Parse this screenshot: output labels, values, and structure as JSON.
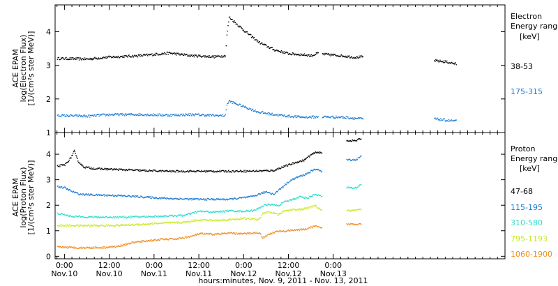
{
  "chart_data": [
    {
      "type": "scatter",
      "panel": "electron",
      "ylabel_lines": [
        "ACE EPAM",
        "log(Electron Flux)",
        "[1/(cm²s ster MeV)]"
      ],
      "legend_title_lines": [
        "Electron",
        "Energy ranges",
        "[keV]"
      ],
      "ylim": [
        1,
        4.8
      ],
      "yticks": [
        1,
        2,
        3,
        4
      ],
      "series": [
        {
          "name": "38-53",
          "color": "#000000",
          "segments": [
            [
              [
                -2,
                3.22
              ],
              [
                6,
                3.2
              ],
              [
                12,
                3.26
              ],
              [
                20,
                3.3
              ],
              [
                28,
                3.38
              ],
              [
                34,
                3.3
              ],
              [
                40,
                3.27
              ],
              [
                43,
                3.3
              ],
              [
                43.4,
                3.9
              ],
              [
                44,
                4.45
              ],
              [
                48,
                4.05
              ],
              [
                52,
                3.7
              ],
              [
                56,
                3.48
              ],
              [
                60,
                3.36
              ],
              [
                64,
                3.33
              ],
              [
                66,
                3.3
              ],
              [
                68,
                3.38
              ]
            ],
            [
              [
                69,
                3.35
              ],
              [
                74,
                3.3
              ],
              [
                78,
                3.25
              ],
              [
                80,
                3.27
              ]
            ],
            [
              [
                99,
                3.15
              ],
              [
                102,
                3.12
              ],
              [
                105,
                3.05
              ]
            ]
          ]
        },
        {
          "name": "175-315",
          "color": "#1a7ad4",
          "segments": [
            [
              [
                -2,
                1.52
              ],
              [
                6,
                1.5
              ],
              [
                12,
                1.55
              ],
              [
                20,
                1.55
              ],
              [
                28,
                1.53
              ],
              [
                34,
                1.55
              ],
              [
                40,
                1.52
              ],
              [
                43,
                1.52
              ],
              [
                43.4,
                1.85
              ],
              [
                44,
                1.95
              ],
              [
                48,
                1.78
              ],
              [
                52,
                1.62
              ],
              [
                56,
                1.55
              ],
              [
                60,
                1.5
              ],
              [
                64,
                1.47
              ],
              [
                68,
                1.48
              ]
            ],
            [
              [
                69,
                1.48
              ],
              [
                74,
                1.47
              ],
              [
                80,
                1.42
              ]
            ],
            [
              [
                99,
                1.42
              ],
              [
                102,
                1.38
              ],
              [
                105,
                1.35
              ]
            ]
          ]
        }
      ]
    },
    {
      "type": "scatter",
      "panel": "proton",
      "ylabel_lines": [
        "ACE EPAM",
        "log(Proton Flux)",
        "[1/(cm²s ster MeV)]"
      ],
      "legend_title_lines": [
        "Proton",
        "Energy ranges",
        "[keV]"
      ],
      "xlabel": "hours:minutes, Nov. 9, 2011 - Nov. 13, 2011",
      "ylim": [
        -0.1,
        4.85
      ],
      "yticks": [
        0,
        1,
        2,
        3,
        4
      ],
      "xlim": [
        -2.5,
        118
      ],
      "xticks": [
        {
          "x": 0,
          "top": "0:00",
          "bottom": "Nov.10"
        },
        {
          "x": 12,
          "top": "12:00",
          "bottom": "Nov.10"
        },
        {
          "x": 24,
          "top": "0:00",
          "bottom": "Nov.11"
        },
        {
          "x": 36,
          "top": "12:00",
          "bottom": "Nov.11"
        },
        {
          "x": 48,
          "top": "0:00",
          "bottom": "Nov.12"
        },
        {
          "x": 60,
          "top": "12:00",
          "bottom": "Nov.12"
        },
        {
          "x": 72,
          "top": "0:00",
          "bottom": "Nov.13"
        }
      ],
      "series": [
        {
          "name": "47-68",
          "color": "#000000",
          "segments": [
            [
              [
                -2,
                3.55
              ],
              [
                0,
                3.6
              ],
              [
                1.5,
                3.85
              ],
              [
                2.5,
                4.15
              ],
              [
                3.5,
                3.75
              ],
              [
                5,
                3.52
              ],
              [
                8,
                3.45
              ],
              [
                14,
                3.42
              ],
              [
                20,
                3.38
              ],
              [
                28,
                3.35
              ],
              [
                36,
                3.35
              ],
              [
                44,
                3.35
              ],
              [
                52,
                3.36
              ],
              [
                56,
                3.38
              ],
              [
                58,
                3.5
              ],
              [
                60,
                3.6
              ],
              [
                62,
                3.7
              ],
              [
                64,
                3.78
              ],
              [
                66,
                4.0
              ],
              [
                67.5,
                4.1
              ],
              [
                69,
                4.05
              ]
            ],
            [
              [
                75.5,
                4.55
              ],
              [
                78,
                4.55
              ],
              [
                79.5,
                4.65
              ]
            ]
          ]
        },
        {
          "name": "115-195",
          "color": "#1a7ad4",
          "segments": [
            [
              [
                -2,
                2.75
              ],
              [
                0,
                2.7
              ],
              [
                2,
                2.55
              ],
              [
                4,
                2.45
              ],
              [
                8,
                2.42
              ],
              [
                14,
                2.4
              ],
              [
                20,
                2.35
              ],
              [
                28,
                2.28
              ],
              [
                36,
                2.25
              ],
              [
                44,
                2.25
              ],
              [
                50,
                2.35
              ],
              [
                54,
                2.55
              ],
              [
                56,
                2.45
              ],
              [
                58,
                2.7
              ],
              [
                60,
                2.95
              ],
              [
                62,
                3.1
              ],
              [
                64,
                3.2
              ],
              [
                66,
                3.35
              ],
              [
                67.5,
                3.45
              ],
              [
                69,
                3.3
              ]
            ],
            [
              [
                75.5,
                3.8
              ],
              [
                78,
                3.8
              ],
              [
                79.5,
                3.95
              ]
            ]
          ]
        },
        {
          "name": "310-580",
          "color": "#28ddcc",
          "segments": [
            [
              [
                -2,
                1.7
              ],
              [
                2,
                1.58
              ],
              [
                8,
                1.55
              ],
              [
                16,
                1.55
              ],
              [
                24,
                1.58
              ],
              [
                32,
                1.62
              ],
              [
                36,
                1.78
              ],
              [
                40,
                1.75
              ],
              [
                44,
                1.8
              ],
              [
                48,
                1.78
              ],
              [
                51,
                1.82
              ],
              [
                53,
                2.0
              ],
              [
                55,
                2.05
              ],
              [
                57,
                2.0
              ],
              [
                59,
                2.15
              ],
              [
                61,
                2.25
              ],
              [
                63,
                2.35
              ],
              [
                65,
                2.3
              ],
              [
                67,
                2.45
              ],
              [
                69,
                2.35
              ]
            ],
            [
              [
                75.5,
                2.7
              ],
              [
                78,
                2.7
              ],
              [
                79.5,
                2.85
              ]
            ]
          ]
        },
        {
          "name": "795-1193",
          "color": "#c8e81e",
          "segments": [
            [
              [
                -2,
                1.22
              ],
              [
                4,
                1.22
              ],
              [
                12,
                1.22
              ],
              [
                18,
                1.25
              ],
              [
                24,
                1.3
              ],
              [
                32,
                1.35
              ],
              [
                36,
                1.45
              ],
              [
                40,
                1.42
              ],
              [
                44,
                1.45
              ],
              [
                48,
                1.5
              ],
              [
                52,
                1.45
              ],
              [
                53,
                1.7
              ],
              [
                55,
                1.75
              ],
              [
                57,
                1.65
              ],
              [
                59,
                1.8
              ],
              [
                61,
                1.85
              ],
              [
                63,
                1.85
              ],
              [
                65,
                1.9
              ],
              [
                67,
                2.0
              ],
              [
                69,
                1.8
              ]
            ],
            [
              [
                75.5,
                1.8
              ],
              [
                78,
                1.82
              ],
              [
                79.5,
                1.85
              ]
            ]
          ]
        },
        {
          "name": "1060-1900",
          "color": "#f08c1e",
          "segments": [
            [
              [
                -2,
                0.38
              ],
              [
                4,
                0.35
              ],
              [
                10,
                0.36
              ],
              [
                14,
                0.4
              ],
              [
                18,
                0.55
              ],
              [
                22,
                0.62
              ],
              [
                26,
                0.68
              ],
              [
                30,
                0.7
              ],
              [
                34,
                0.8
              ],
              [
                36,
                0.9
              ],
              [
                40,
                0.88
              ],
              [
                44,
                0.92
              ],
              [
                48,
                0.9
              ],
              [
                52,
                0.95
              ],
              [
                53,
                0.75
              ],
              [
                55,
                0.9
              ],
              [
                57,
                1.0
              ],
              [
                59,
                1.0
              ],
              [
                61,
                1.05
              ],
              [
                63,
                1.05
              ],
              [
                65,
                1.1
              ],
              [
                67,
                1.2
              ],
              [
                69,
                1.1
              ]
            ],
            [
              [
                75.5,
                1.28
              ],
              [
                78,
                1.28
              ],
              [
                79.5,
                1.3
              ]
            ]
          ]
        }
      ]
    }
  ]
}
